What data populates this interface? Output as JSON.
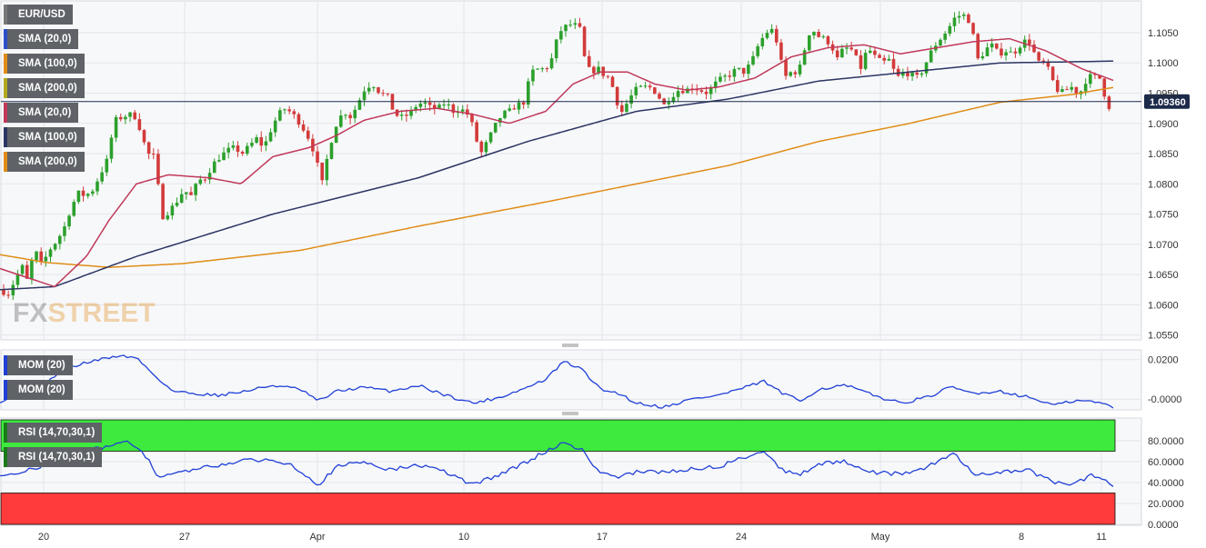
{
  "colors": {
    "bull": "#2ca02c",
    "bear": "#d33a3a",
    "sma20": "#c0395a",
    "sma100": "#2c3563",
    "sma200": "#e08c16",
    "mom": "#1f3fd6",
    "rsi": "#1f3fd6",
    "rsi_overbought_zone": "#3dea3d",
    "rsi_oversold_zone": "#ff3b3b",
    "legend_bg": "#5f6368",
    "current_price_line": "#1c2a4a"
  },
  "legends": {
    "main": [
      {
        "label": "EUR/USD",
        "color": "#888888"
      },
      {
        "label": "SMA (20,0)",
        "color": "#2c3563"
      },
      {
        "label": "SMA (100,0)",
        "color": "#e08c16"
      },
      {
        "label": "SMA (200,0)",
        "color": "#9a9a2a"
      },
      {
        "label": "SMA (20,0)",
        "color": "#c0395a"
      },
      {
        "label": "SMA (100,0)",
        "color": "#2c3563"
      },
      {
        "label": "SMA (200,0)",
        "color": "#e08c16"
      }
    ],
    "mom": [
      {
        "label": "MOM (20)",
        "color": "#1f3fd6"
      },
      {
        "label": "MOM (20)",
        "color": "#1f3fd6"
      }
    ],
    "rsi": [
      {
        "label": "RSI (14,70,30,1)",
        "color": "#1a7a1a"
      },
      {
        "label": "RSI (14,70,30,1)",
        "color": "#1a7a1a"
      }
    ]
  },
  "logo": {
    "text_a": "FX",
    "text_b": "STREET"
  },
  "current_price": {
    "value": 1.0936,
    "label": "1.09360"
  },
  "chart_data": {
    "type": "candlestick",
    "symbol": "EUR/USD",
    "x_ticks": [
      "20",
      "27",
      "Apr",
      "10",
      "17",
      "24",
      "May",
      "8",
      "11"
    ],
    "y_ticks": [
      "1.1050",
      "1.1000",
      "1.0950",
      "1.0900",
      "1.0850",
      "1.0800",
      "1.0750",
      "1.0700",
      "1.0650",
      "1.0600",
      "1.0550"
    ],
    "ylim": [
      1.0545,
      1.1095
    ],
    "mom_ticks": [
      "0.0200",
      "-0.0000"
    ],
    "mom_ylim": [
      -0.0045,
      0.024
    ],
    "rsi_ticks": [
      "80.0000",
      "60.0000",
      "40.0000",
      "20.0000",
      "0.0000"
    ],
    "rsi_ylim": [
      0,
      100
    ],
    "rsi_levels": {
      "overbought": 70,
      "oversold": 30
    },
    "price_anchors": [
      [
        0,
        1.0628
      ],
      [
        8,
        1.0615
      ],
      [
        16,
        1.064
      ],
      [
        24,
        1.0665
      ],
      [
        30,
        1.064
      ],
      [
        38,
        1.0692
      ],
      [
        46,
        1.0665
      ],
      [
        54,
        1.069
      ],
      [
        62,
        1.0705
      ],
      [
        70,
        1.0725
      ],
      [
        78,
        1.076
      ],
      [
        86,
        1.0785
      ],
      [
        94,
        1.078
      ],
      [
        102,
        1.079
      ],
      [
        110,
        1.0815
      ],
      [
        118,
        1.084
      ],
      [
        126,
        1.0905
      ],
      [
        134,
        1.091
      ],
      [
        142,
        1.0915
      ],
      [
        150,
        1.091
      ],
      [
        156,
        1.088
      ],
      [
        162,
        1.085
      ],
      [
        170,
        1.0845
      ],
      [
        178,
        1.0745
      ],
      [
        186,
        1.0755
      ],
      [
        194,
        1.077
      ],
      [
        202,
        1.079
      ],
      [
        210,
        1.078
      ],
      [
        218,
        1.0805
      ],
      [
        226,
        1.081
      ],
      [
        234,
        1.0832
      ],
      [
        242,
        1.0845
      ],
      [
        250,
        1.0855
      ],
      [
        258,
        1.086
      ],
      [
        266,
        1.085
      ],
      [
        274,
        1.0862
      ],
      [
        282,
        1.0875
      ],
      [
        290,
        1.086
      ],
      [
        298,
        1.089
      ],
      [
        306,
        1.0915
      ],
      [
        314,
        1.0925
      ],
      [
        322,
        1.0915
      ],
      [
        330,
        1.09
      ],
      [
        338,
        1.088
      ],
      [
        346,
        1.085
      ],
      [
        354,
        1.08
      ],
      [
        362,
        1.086
      ],
      [
        370,
        1.09
      ],
      [
        378,
        1.092
      ],
      [
        386,
        1.091
      ],
      [
        394,
        1.0935
      ],
      [
        402,
        1.096
      ],
      [
        410,
        1.0965
      ],
      [
        418,
        1.095
      ],
      [
        426,
        1.0945
      ],
      [
        434,
        1.0915
      ],
      [
        442,
        1.091
      ],
      [
        450,
        1.0915
      ],
      [
        458,
        1.093
      ],
      [
        466,
        1.0935
      ],
      [
        474,
        1.0925
      ],
      [
        482,
        1.0925
      ],
      [
        490,
        1.0935
      ],
      [
        498,
        1.092
      ],
      [
        506,
        1.0925
      ],
      [
        514,
        1.0915
      ],
      [
        520,
        1.0895
      ],
      [
        528,
        1.0848
      ],
      [
        536,
        1.087
      ],
      [
        544,
        1.0895
      ],
      [
        552,
        1.0915
      ],
      [
        560,
        1.092
      ],
      [
        568,
        1.093
      ],
      [
        576,
        1.0935
      ],
      [
        584,
        1.0985
      ],
      [
        592,
        1.099
      ],
      [
        600,
        1.099
      ],
      [
        608,
        1.101
      ],
      [
        614,
        1.105
      ],
      [
        622,
        1.106
      ],
      [
        630,
        1.1065
      ],
      [
        638,
        1.1055
      ],
      [
        644,
        1.0995
      ],
      [
        650,
        1.0985
      ],
      [
        658,
        1.099
      ],
      [
        664,
        1.098
      ],
      [
        670,
        1.0975
      ],
      [
        676,
        1.095
      ],
      [
        682,
        1.0915
      ],
      [
        690,
        1.0935
      ],
      [
        698,
        1.0955
      ],
      [
        706,
        1.096
      ],
      [
        714,
        1.096
      ],
      [
        722,
        1.095
      ],
      [
        730,
        1.093
      ],
      [
        738,
        1.0945
      ],
      [
        746,
        1.0955
      ],
      [
        754,
        1.0955
      ],
      [
        762,
        1.096
      ],
      [
        770,
        1.0955
      ],
      [
        778,
        1.095
      ],
      [
        786,
        1.0965
      ],
      [
        794,
        1.0975
      ],
      [
        802,
        1.098
      ],
      [
        810,
        1.099
      ],
      [
        818,
        1.0985
      ],
      [
        826,
        1.1
      ],
      [
        834,
        1.103
      ],
      [
        842,
        1.105
      ],
      [
        850,
        1.1055
      ],
      [
        856,
        1.1025
      ],
      [
        862,
        1.0975
      ],
      [
        870,
        1.0985
      ],
      [
        878,
        1.0985
      ],
      [
        886,
        1.103
      ],
      [
        892,
        1.106
      ],
      [
        898,
        1.1045
      ],
      [
        906,
        1.104
      ],
      [
        914,
        1.103
      ],
      [
        920,
        1.1005
      ],
      [
        926,
        1.102
      ],
      [
        932,
        1.1025
      ],
      [
        938,
        1.102
      ],
      [
        946,
        1.099
      ],
      [
        954,
        1.1025
      ],
      [
        962,
        1.101
      ],
      [
        970,
        1.1
      ],
      [
        978,
        1.1005
      ],
      [
        986,
        1.0975
      ],
      [
        994,
        1.0985
      ],
      [
        1002,
        1.098
      ],
      [
        1010,
        1.0975
      ],
      [
        1018,
        1.1
      ],
      [
        1026,
        1.1025
      ],
      [
        1034,
        1.104
      ],
      [
        1042,
        1.1055
      ],
      [
        1050,
        1.1075
      ],
      [
        1058,
        1.108
      ],
      [
        1064,
        1.1075
      ],
      [
        1070,
        1.1045
      ],
      [
        1076,
        1.1
      ],
      [
        1082,
        1.102
      ],
      [
        1090,
        1.103
      ],
      [
        1098,
        1.1015
      ],
      [
        1106,
        1.102
      ],
      [
        1114,
        1.1015
      ],
      [
        1122,
        1.103
      ],
      [
        1130,
        1.104
      ],
      [
        1136,
        1.102
      ],
      [
        1142,
        1.1
      ],
      [
        1148,
        1.1
      ],
      [
        1154,
        1.0985
      ],
      [
        1160,
        1.096
      ],
      [
        1166,
        1.095
      ],
      [
        1172,
        1.0955
      ],
      [
        1178,
        1.096
      ],
      [
        1184,
        1.095
      ],
      [
        1190,
        1.0955
      ],
      [
        1196,
        1.098
      ],
      [
        1202,
        1.0975
      ],
      [
        1208,
        1.098
      ],
      [
        1214,
        1.095
      ],
      [
        1218,
        1.0925
      ],
      [
        1224,
        1.0936
      ]
    ],
    "sma20_anchors": [
      [
        0,
        1.066
      ],
      [
        30,
        1.0645
      ],
      [
        60,
        1.063
      ],
      [
        95,
        1.068
      ],
      [
        120,
        1.074
      ],
      [
        150,
        1.08
      ],
      [
        185,
        1.0815
      ],
      [
        230,
        1.081
      ],
      [
        265,
        1.08
      ],
      [
        300,
        1.0845
      ],
      [
        340,
        1.086
      ],
      [
        370,
        1.088
      ],
      [
        400,
        1.0905
      ],
      [
        440,
        1.092
      ],
      [
        480,
        1.0925
      ],
      [
        520,
        1.0915
      ],
      [
        560,
        1.09
      ],
      [
        600,
        1.092
      ],
      [
        630,
        1.0965
      ],
      [
        660,
        1.0985
      ],
      [
        690,
        1.0985
      ],
      [
        720,
        1.0965
      ],
      [
        755,
        1.0955
      ],
      [
        790,
        1.096
      ],
      [
        830,
        1.0975
      ],
      [
        870,
        1.101
      ],
      [
        910,
        1.1025
      ],
      [
        950,
        1.103
      ],
      [
        990,
        1.1015
      ],
      [
        1030,
        1.1025
      ],
      [
        1070,
        1.1035
      ],
      [
        1110,
        1.104
      ],
      [
        1150,
        1.102
      ],
      [
        1190,
        1.099
      ],
      [
        1226,
        1.097
      ]
    ],
    "sma100_anchors": [
      [
        0,
        1.0625
      ],
      [
        60,
        1.063
      ],
      [
        150,
        1.068
      ],
      [
        300,
        1.075
      ],
      [
        460,
        1.081
      ],
      [
        580,
        1.087
      ],
      [
        700,
        1.092
      ],
      [
        800,
        1.094
      ],
      [
        900,
        1.097
      ],
      [
        1000,
        1.0985
      ],
      [
        1100,
        1.1
      ],
      [
        1226,
        1.1003
      ]
    ],
    "sma200_anchors": [
      [
        0,
        1.0683
      ],
      [
        50,
        1.067
      ],
      [
        120,
        1.0662
      ],
      [
        200,
        1.0668
      ],
      [
        330,
        1.069
      ],
      [
        460,
        1.073
      ],
      [
        600,
        1.077
      ],
      [
        700,
        1.08
      ],
      [
        800,
        1.083
      ],
      [
        900,
        1.087
      ],
      [
        1000,
        1.09
      ],
      [
        1100,
        1.0935
      ],
      [
        1180,
        1.0948
      ],
      [
        1226,
        1.096
      ]
    ],
    "mom_anchors": [
      [
        0,
        -0.001
      ],
      [
        20,
        0.002
      ],
      [
        40,
        0.006
      ],
      [
        70,
        0.014
      ],
      [
        90,
        0.018
      ],
      [
        110,
        0.02
      ],
      [
        130,
        0.022
      ],
      [
        150,
        0.021
      ],
      [
        170,
        0.012
      ],
      [
        190,
        0.004
      ],
      [
        210,
        0.003
      ],
      [
        240,
        0.002
      ],
      [
        270,
        0.004
      ],
      [
        300,
        0.007
      ],
      [
        330,
        0.005
      ],
      [
        350,
        -0.001
      ],
      [
        370,
        0.004
      ],
      [
        400,
        0.006
      ],
      [
        430,
        0.004
      ],
      [
        460,
        0.007
      ],
      [
        490,
        0.002
      ],
      [
        520,
        -0.002
      ],
      [
        550,
        0.001
      ],
      [
        580,
        0.006
      ],
      [
        600,
        0.01
      ],
      [
        620,
        0.019
      ],
      [
        640,
        0.015
      ],
      [
        660,
        0.005
      ],
      [
        680,
        0.003
      ],
      [
        700,
        -0.002
      ],
      [
        730,
        -0.004
      ],
      [
        760,
        0.0
      ],
      [
        790,
        0.002
      ],
      [
        820,
        0.006
      ],
      [
        840,
        0.009
      ],
      [
        860,
        0.003
      ],
      [
        880,
        -0.001
      ],
      [
        900,
        0.005
      ],
      [
        930,
        0.007
      ],
      [
        960,
        0.002
      ],
      [
        990,
        -0.002
      ],
      [
        1020,
        0.001
      ],
      [
        1045,
        0.006
      ],
      [
        1070,
        0.003
      ],
      [
        1100,
        0.004
      ],
      [
        1130,
        0.001
      ],
      [
        1160,
        -0.003
      ],
      [
        1180,
        -0.001
      ],
      [
        1200,
        -0.001
      ],
      [
        1226,
        -0.004
      ]
    ],
    "rsi_anchors": [
      [
        0,
        45
      ],
      [
        30,
        52
      ],
      [
        60,
        60
      ],
      [
        90,
        70
      ],
      [
        120,
        75
      ],
      [
        140,
        78
      ],
      [
        155,
        72
      ],
      [
        175,
        45
      ],
      [
        200,
        50
      ],
      [
        230,
        55
      ],
      [
        260,
        60
      ],
      [
        290,
        62
      ],
      [
        320,
        58
      ],
      [
        350,
        38
      ],
      [
        370,
        55
      ],
      [
        400,
        60
      ],
      [
        430,
        52
      ],
      [
        460,
        57
      ],
      [
        490,
        50
      ],
      [
        520,
        38
      ],
      [
        550,
        48
      ],
      [
        580,
        60
      ],
      [
        600,
        70
      ],
      [
        620,
        78
      ],
      [
        640,
        72
      ],
      [
        655,
        52
      ],
      [
        680,
        45
      ],
      [
        700,
        50
      ],
      [
        730,
        50
      ],
      [
        760,
        53
      ],
      [
        790,
        55
      ],
      [
        820,
        65
      ],
      [
        840,
        70
      ],
      [
        860,
        52
      ],
      [
        880,
        48
      ],
      [
        900,
        58
      ],
      [
        930,
        60
      ],
      [
        960,
        50
      ],
      [
        990,
        48
      ],
      [
        1020,
        55
      ],
      [
        1050,
        68
      ],
      [
        1070,
        48
      ],
      [
        1100,
        50
      ],
      [
        1130,
        52
      ],
      [
        1160,
        40
      ],
      [
        1180,
        38
      ],
      [
        1200,
        47
      ],
      [
        1226,
        37
      ]
    ]
  }
}
